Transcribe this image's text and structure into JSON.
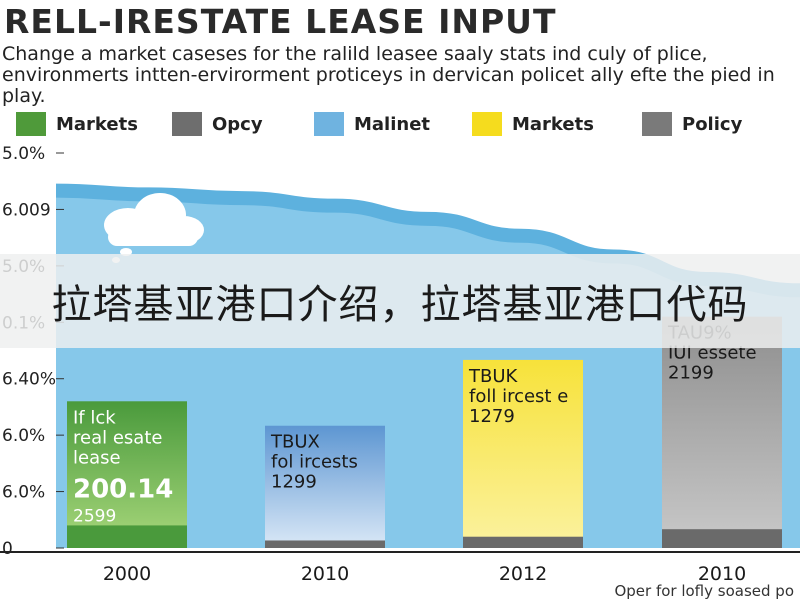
{
  "title": "RELL-IRESTATE LEASE INPUT",
  "subtitle": "Change a market caseses for the ralild leasee saaly stats ind culy of plice, environmerts intten-ervirorment proticeys in dervican policet ally efte the pied in play.",
  "legend": [
    {
      "label": "Markets",
      "color": "#4f9a3a"
    },
    {
      "label": "Opcy",
      "color": "#6e6e6e"
    },
    {
      "label": "Malinet",
      "color": "#6fb3e0"
    },
    {
      "label": "Markets",
      "color": "#f5dc1e"
    },
    {
      "label": "Policy",
      "color": "#7a7a7a"
    }
  ],
  "banner_text": "拉塔基亚港口介绍，拉塔基亚港口代码",
  "footnote": "Oper for lofly soased po",
  "chart_data": {
    "type": "bar",
    "ytick_labels": [
      "0",
      "6.0%",
      "6.0%",
      "6.40%",
      "0.1%",
      "5.0%",
      "6.009",
      "5.0%"
    ],
    "categories": [
      "2000",
      "2010",
      "2012",
      "2010"
    ],
    "values": [
      0.78,
      0.65,
      1.0,
      1.23
    ],
    "base_values": [
      0.12,
      0.04,
      0.06,
      0.1
    ],
    "ylim": [
      0,
      2.1
    ],
    "area_curve": [
      1.9,
      1.88,
      1.86,
      1.82,
      1.75,
      1.66,
      1.55,
      1.43,
      1.37
    ],
    "series": [
      {
        "color": "#4a9a3c",
        "label_lines": [
          "If lck",
          "real esate",
          "lease"
        ],
        "value_label": "200.14",
        "sub_label": "2599"
      },
      {
        "color": "#5d96d2",
        "label_lines": [
          "TBUX",
          "fol ircests",
          "1299"
        ],
        "value_label": "",
        "sub_label": ""
      },
      {
        "color": "#f7e23a",
        "label_lines": [
          "TBUK",
          "foll ircest e",
          "1279"
        ],
        "value_label": "",
        "sub_label": ""
      },
      {
        "color": "#8e8e8e",
        "label_lines": [
          "TAU9%",
          "IUI essete",
          "2199"
        ],
        "value_label": "",
        "sub_label": ""
      }
    ],
    "colors": {
      "area": "#86c8ea",
      "area_top": "#5db1de",
      "base": "#6a6a6a"
    }
  }
}
